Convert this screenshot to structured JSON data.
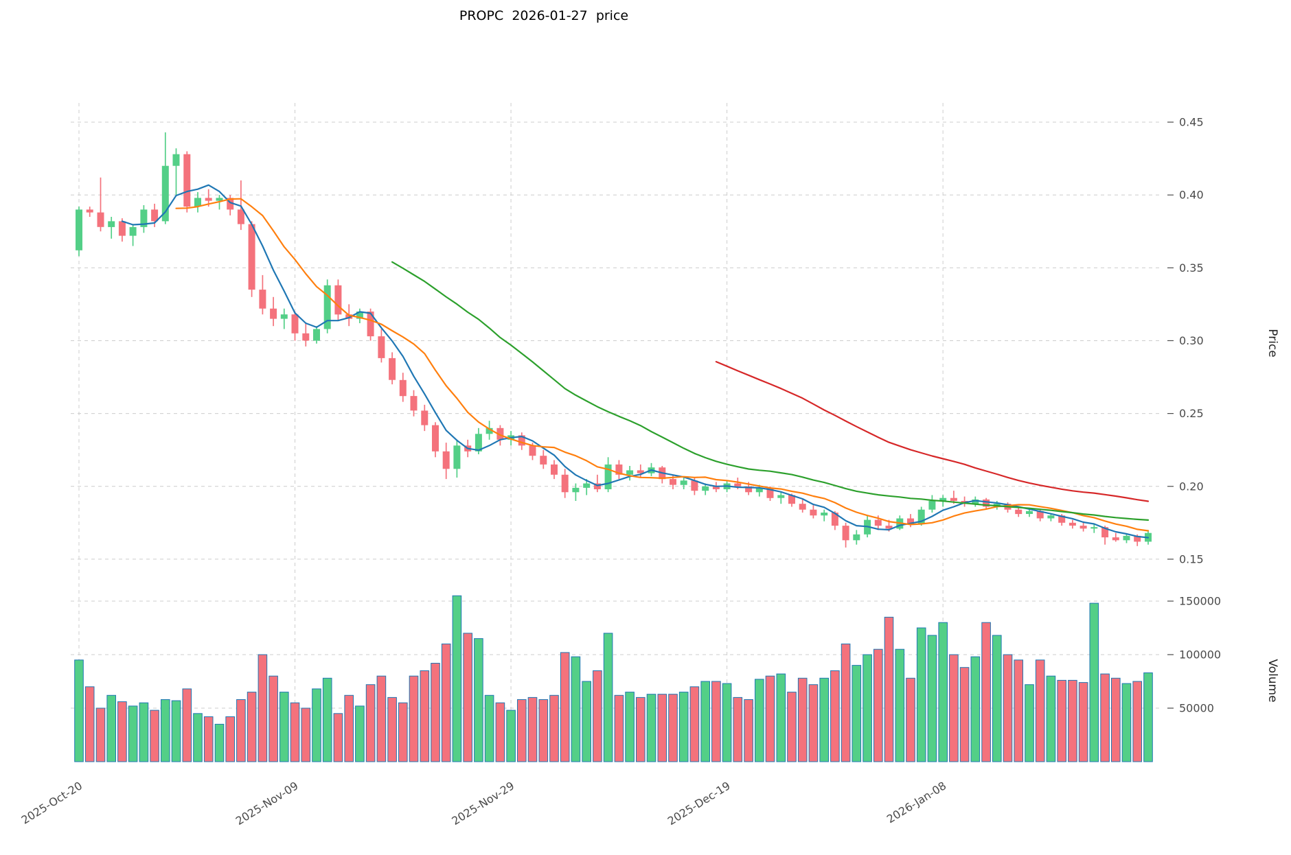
{
  "title": "PROPC  2026-01-27  price",
  "price_axis": {
    "label": "Price",
    "ticks": [
      0.15,
      0.2,
      0.25,
      0.3,
      0.35,
      0.4,
      0.45
    ]
  },
  "volume_axis": {
    "label": "Volume",
    "ticks": [
      50000,
      100000,
      150000
    ]
  },
  "x_axis": {
    "tick_labels": [
      "2025-Oct-20",
      "2025-Nov-09",
      "2025-Nov-29",
      "2025-Dec-19",
      "2026-Jan-08"
    ],
    "tick_indices": [
      0,
      20,
      40,
      60,
      80
    ]
  },
  "colors": {
    "up": "#53cf87",
    "down": "#f4727c",
    "volume_edge": "#1f77b4",
    "grid": "#cccccc",
    "tick_text": "#4a4a4a",
    "axis_label_text": "#222222"
  },
  "chart_data": {
    "type": "candlestick+volume",
    "title": "PROPC  2026-01-27  price",
    "ylabel": "Price",
    "ylabel2": "Volume",
    "price_range": [
      0.15,
      0.45
    ],
    "volume_range": [
      0,
      150000
    ],
    "grid": true,
    "moving_averages": [
      {
        "name": "MA5",
        "window": 5,
        "color": "#1f77b4"
      },
      {
        "name": "MA10",
        "window": 10,
        "color": "#ff7f0e"
      },
      {
        "name": "MA30",
        "window": 30,
        "color": "#2ca02c"
      },
      {
        "name": "MA60",
        "window": 60,
        "color": "#d62728"
      }
    ],
    "dates": [
      "2025-10-20",
      "2025-10-21",
      "2025-10-22",
      "2025-10-23",
      "2025-10-24",
      "2025-10-25",
      "2025-10-26",
      "2025-10-27",
      "2025-10-28",
      "2025-10-29",
      "2025-10-30",
      "2025-10-31",
      "2025-11-01",
      "2025-11-02",
      "2025-11-03",
      "2025-11-04",
      "2025-11-05",
      "2025-11-06",
      "2025-11-07",
      "2025-11-08",
      "2025-11-09",
      "2025-11-10",
      "2025-11-11",
      "2025-11-12",
      "2025-11-13",
      "2025-11-14",
      "2025-11-15",
      "2025-11-16",
      "2025-11-17",
      "2025-11-18",
      "2025-11-19",
      "2025-11-20",
      "2025-11-21",
      "2025-11-22",
      "2025-11-23",
      "2025-11-24",
      "2025-11-25",
      "2025-11-26",
      "2025-11-27",
      "2025-11-28",
      "2025-11-29",
      "2025-11-30",
      "2025-12-01",
      "2025-12-02",
      "2025-12-03",
      "2025-12-04",
      "2025-12-05",
      "2025-12-06",
      "2025-12-07",
      "2025-12-08",
      "2025-12-09",
      "2025-12-10",
      "2025-12-11",
      "2025-12-12",
      "2025-12-13",
      "2025-12-14",
      "2025-12-15",
      "2025-12-16",
      "2025-12-17",
      "2025-12-18",
      "2025-12-19",
      "2025-12-20",
      "2025-12-21",
      "2025-12-22",
      "2025-12-23",
      "2025-12-24",
      "2025-12-25",
      "2025-12-26",
      "2025-12-27",
      "2025-12-28",
      "2025-12-29",
      "2025-12-30",
      "2025-12-31",
      "2026-01-01",
      "2026-01-02",
      "2026-01-03",
      "2026-01-04",
      "2026-01-05",
      "2026-01-06",
      "2026-01-07",
      "2026-01-08",
      "2026-01-09",
      "2026-01-10",
      "2026-01-11",
      "2026-01-12",
      "2026-01-13",
      "2026-01-14",
      "2026-01-15",
      "2026-01-16",
      "2026-01-17",
      "2026-01-18",
      "2026-01-19",
      "2026-01-20",
      "2026-01-21",
      "2026-01-22",
      "2026-01-23",
      "2026-01-24",
      "2026-01-25",
      "2026-01-26",
      "2026-01-27"
    ],
    "candles_format": [
      "open",
      "high",
      "low",
      "close",
      "volume"
    ],
    "candles": [
      [
        0.362,
        0.392,
        0.358,
        0.39,
        95000
      ],
      [
        0.39,
        0.392,
        0.385,
        0.388,
        70000
      ],
      [
        0.388,
        0.412,
        0.375,
        0.378,
        50000
      ],
      [
        0.378,
        0.385,
        0.37,
        0.382,
        62000
      ],
      [
        0.382,
        0.384,
        0.368,
        0.372,
        56000
      ],
      [
        0.372,
        0.38,
        0.365,
        0.378,
        52000
      ],
      [
        0.378,
        0.393,
        0.374,
        0.39,
        55000
      ],
      [
        0.39,
        0.394,
        0.378,
        0.382,
        48000
      ],
      [
        0.382,
        0.443,
        0.38,
        0.42,
        58000
      ],
      [
        0.42,
        0.432,
        0.4,
        0.428,
        57000
      ],
      [
        0.428,
        0.43,
        0.388,
        0.392,
        68000
      ],
      [
        0.392,
        0.402,
        0.388,
        0.398,
        45000
      ],
      [
        0.398,
        0.404,
        0.392,
        0.396,
        42000
      ],
      [
        0.396,
        0.4,
        0.39,
        0.398,
        35000
      ],
      [
        0.398,
        0.4,
        0.386,
        0.39,
        42000
      ],
      [
        0.39,
        0.41,
        0.376,
        0.38,
        58000
      ],
      [
        0.38,
        0.382,
        0.33,
        0.335,
        65000
      ],
      [
        0.335,
        0.345,
        0.318,
        0.322,
        100000
      ],
      [
        0.322,
        0.33,
        0.31,
        0.315,
        80000
      ],
      [
        0.315,
        0.322,
        0.308,
        0.318,
        65000
      ],
      [
        0.318,
        0.32,
        0.3,
        0.305,
        55000
      ],
      [
        0.305,
        0.312,
        0.296,
        0.3,
        50000
      ],
      [
        0.3,
        0.31,
        0.298,
        0.308,
        68000
      ],
      [
        0.308,
        0.342,
        0.305,
        0.338,
        78000
      ],
      [
        0.338,
        0.342,
        0.314,
        0.318,
        45000
      ],
      [
        0.318,
        0.325,
        0.31,
        0.315,
        62000
      ],
      [
        0.315,
        0.322,
        0.312,
        0.32,
        52000
      ],
      [
        0.32,
        0.322,
        0.3,
        0.303,
        72000
      ],
      [
        0.303,
        0.308,
        0.285,
        0.288,
        80000
      ],
      [
        0.288,
        0.292,
        0.27,
        0.273,
        60000
      ],
      [
        0.273,
        0.278,
        0.258,
        0.262,
        55000
      ],
      [
        0.262,
        0.266,
        0.248,
        0.252,
        80000
      ],
      [
        0.252,
        0.256,
        0.238,
        0.242,
        85000
      ],
      [
        0.242,
        0.244,
        0.22,
        0.224,
        92000
      ],
      [
        0.224,
        0.23,
        0.205,
        0.212,
        110000
      ],
      [
        0.212,
        0.232,
        0.206,
        0.228,
        155000
      ],
      [
        0.228,
        0.232,
        0.22,
        0.224,
        120000
      ],
      [
        0.224,
        0.24,
        0.222,
        0.236,
        115000
      ],
      [
        0.236,
        0.245,
        0.232,
        0.24,
        62000
      ],
      [
        0.24,
        0.242,
        0.228,
        0.232,
        55000
      ],
      [
        0.232,
        0.238,
        0.228,
        0.235,
        48000
      ],
      [
        0.235,
        0.237,
        0.225,
        0.228,
        58000
      ],
      [
        0.228,
        0.23,
        0.218,
        0.221,
        60000
      ],
      [
        0.221,
        0.225,
        0.212,
        0.215,
        58000
      ],
      [
        0.215,
        0.218,
        0.205,
        0.208,
        62000
      ],
      [
        0.208,
        0.212,
        0.192,
        0.196,
        102000
      ],
      [
        0.196,
        0.202,
        0.19,
        0.199,
        98000
      ],
      [
        0.199,
        0.205,
        0.194,
        0.202,
        75000
      ],
      [
        0.202,
        0.208,
        0.196,
        0.198,
        85000
      ],
      [
        0.198,
        0.22,
        0.196,
        0.215,
        120000
      ],
      [
        0.215,
        0.218,
        0.205,
        0.208,
        62000
      ],
      [
        0.208,
        0.214,
        0.204,
        0.211,
        65000
      ],
      [
        0.211,
        0.215,
        0.206,
        0.209,
        60000
      ],
      [
        0.209,
        0.216,
        0.207,
        0.213,
        63000
      ],
      [
        0.213,
        0.214,
        0.202,
        0.205,
        63000
      ],
      [
        0.205,
        0.208,
        0.198,
        0.201,
        63000
      ],
      [
        0.201,
        0.206,
        0.198,
        0.204,
        65000
      ],
      [
        0.204,
        0.206,
        0.194,
        0.197,
        70000
      ],
      [
        0.197,
        0.202,
        0.194,
        0.2,
        75000
      ],
      [
        0.2,
        0.203,
        0.196,
        0.198,
        75000
      ],
      [
        0.198,
        0.204,
        0.196,
        0.202,
        73000
      ],
      [
        0.202,
        0.206,
        0.198,
        0.2,
        60000
      ],
      [
        0.2,
        0.203,
        0.194,
        0.196,
        58000
      ],
      [
        0.196,
        0.201,
        0.193,
        0.199,
        77000
      ],
      [
        0.199,
        0.2,
        0.19,
        0.192,
        80000
      ],
      [
        0.192,
        0.196,
        0.188,
        0.194,
        82000
      ],
      [
        0.194,
        0.195,
        0.186,
        0.188,
        65000
      ],
      [
        0.188,
        0.191,
        0.182,
        0.184,
        78000
      ],
      [
        0.184,
        0.187,
        0.178,
        0.18,
        72000
      ],
      [
        0.18,
        0.184,
        0.176,
        0.182,
        78000
      ],
      [
        0.182,
        0.183,
        0.17,
        0.173,
        85000
      ],
      [
        0.173,
        0.175,
        0.158,
        0.163,
        110000
      ],
      [
        0.163,
        0.17,
        0.16,
        0.167,
        90000
      ],
      [
        0.167,
        0.18,
        0.165,
        0.177,
        100000
      ],
      [
        0.177,
        0.18,
        0.17,
        0.173,
        105000
      ],
      [
        0.173,
        0.177,
        0.169,
        0.171,
        135000
      ],
      [
        0.171,
        0.18,
        0.17,
        0.178,
        105000
      ],
      [
        0.178,
        0.181,
        0.172,
        0.174,
        78000
      ],
      [
        0.174,
        0.186,
        0.173,
        0.184,
        125000
      ],
      [
        0.184,
        0.194,
        0.182,
        0.19,
        118000
      ],
      [
        0.19,
        0.194,
        0.186,
        0.192,
        130000
      ],
      [
        0.192,
        0.197,
        0.188,
        0.19,
        100000
      ],
      [
        0.19,
        0.193,
        0.186,
        0.188,
        88000
      ],
      [
        0.188,
        0.193,
        0.186,
        0.191,
        98000
      ],
      [
        0.191,
        0.192,
        0.184,
        0.186,
        130000
      ],
      [
        0.186,
        0.19,
        0.184,
        0.188,
        118000
      ],
      [
        0.188,
        0.189,
        0.182,
        0.184,
        100000
      ],
      [
        0.184,
        0.186,
        0.179,
        0.181,
        95000
      ],
      [
        0.181,
        0.184,
        0.179,
        0.183,
        72000
      ],
      [
        0.183,
        0.184,
        0.176,
        0.178,
        95000
      ],
      [
        0.178,
        0.181,
        0.176,
        0.18,
        80000
      ],
      [
        0.18,
        0.181,
        0.173,
        0.175,
        76000
      ],
      [
        0.175,
        0.177,
        0.171,
        0.173,
        76000
      ],
      [
        0.173,
        0.176,
        0.169,
        0.171,
        74000
      ],
      [
        0.171,
        0.174,
        0.168,
        0.172,
        148000
      ],
      [
        0.172,
        0.173,
        0.16,
        0.165,
        82000
      ],
      [
        0.165,
        0.168,
        0.162,
        0.163,
        78000
      ],
      [
        0.163,
        0.167,
        0.161,
        0.166,
        73000
      ],
      [
        0.166,
        0.167,
        0.159,
        0.162,
        75000
      ],
      [
        0.162,
        0.17,
        0.16,
        0.168,
        83000
      ]
    ]
  }
}
